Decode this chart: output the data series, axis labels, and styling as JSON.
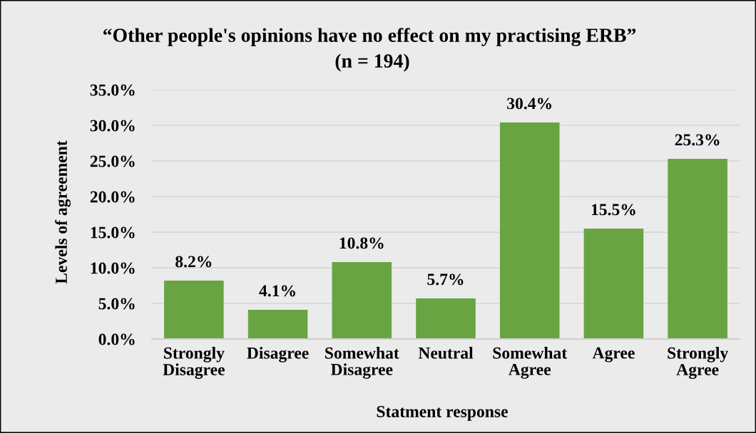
{
  "chart_data": {
    "type": "bar",
    "title": "“Other people's opinions have no effect on my practising ERB”",
    "subtitle": "(n = 194)",
    "xlabel": "Statment response",
    "ylabel": "Levels of agreement",
    "categories": [
      "Strongly\nDisagree",
      "Disagree",
      "Somewhat\nDisagree",
      "Neutral",
      "Somewhat\nAgree",
      "Agree",
      "Strongly\nAgree"
    ],
    "values": [
      8.2,
      4.1,
      10.8,
      5.7,
      30.4,
      15.5,
      25.3
    ],
    "value_labels": [
      "8.2%",
      "4.1%",
      "10.8%",
      "5.7%",
      "30.4%",
      "15.5%",
      "25.3%"
    ],
    "color": "#69a443",
    "ylim": [
      0,
      35
    ],
    "yticks": [
      {
        "value": 0,
        "label": "0.0%"
      },
      {
        "value": 5,
        "label": "5.0%"
      },
      {
        "value": 10,
        "label": "10.0%"
      },
      {
        "value": 15,
        "label": "15.0%"
      },
      {
        "value": 20,
        "label": "20.0%"
      },
      {
        "value": 25,
        "label": "25.0%"
      },
      {
        "value": 30,
        "label": "30.0%"
      },
      {
        "value": 35,
        "label": "35.0%"
      }
    ],
    "grid": "y"
  }
}
